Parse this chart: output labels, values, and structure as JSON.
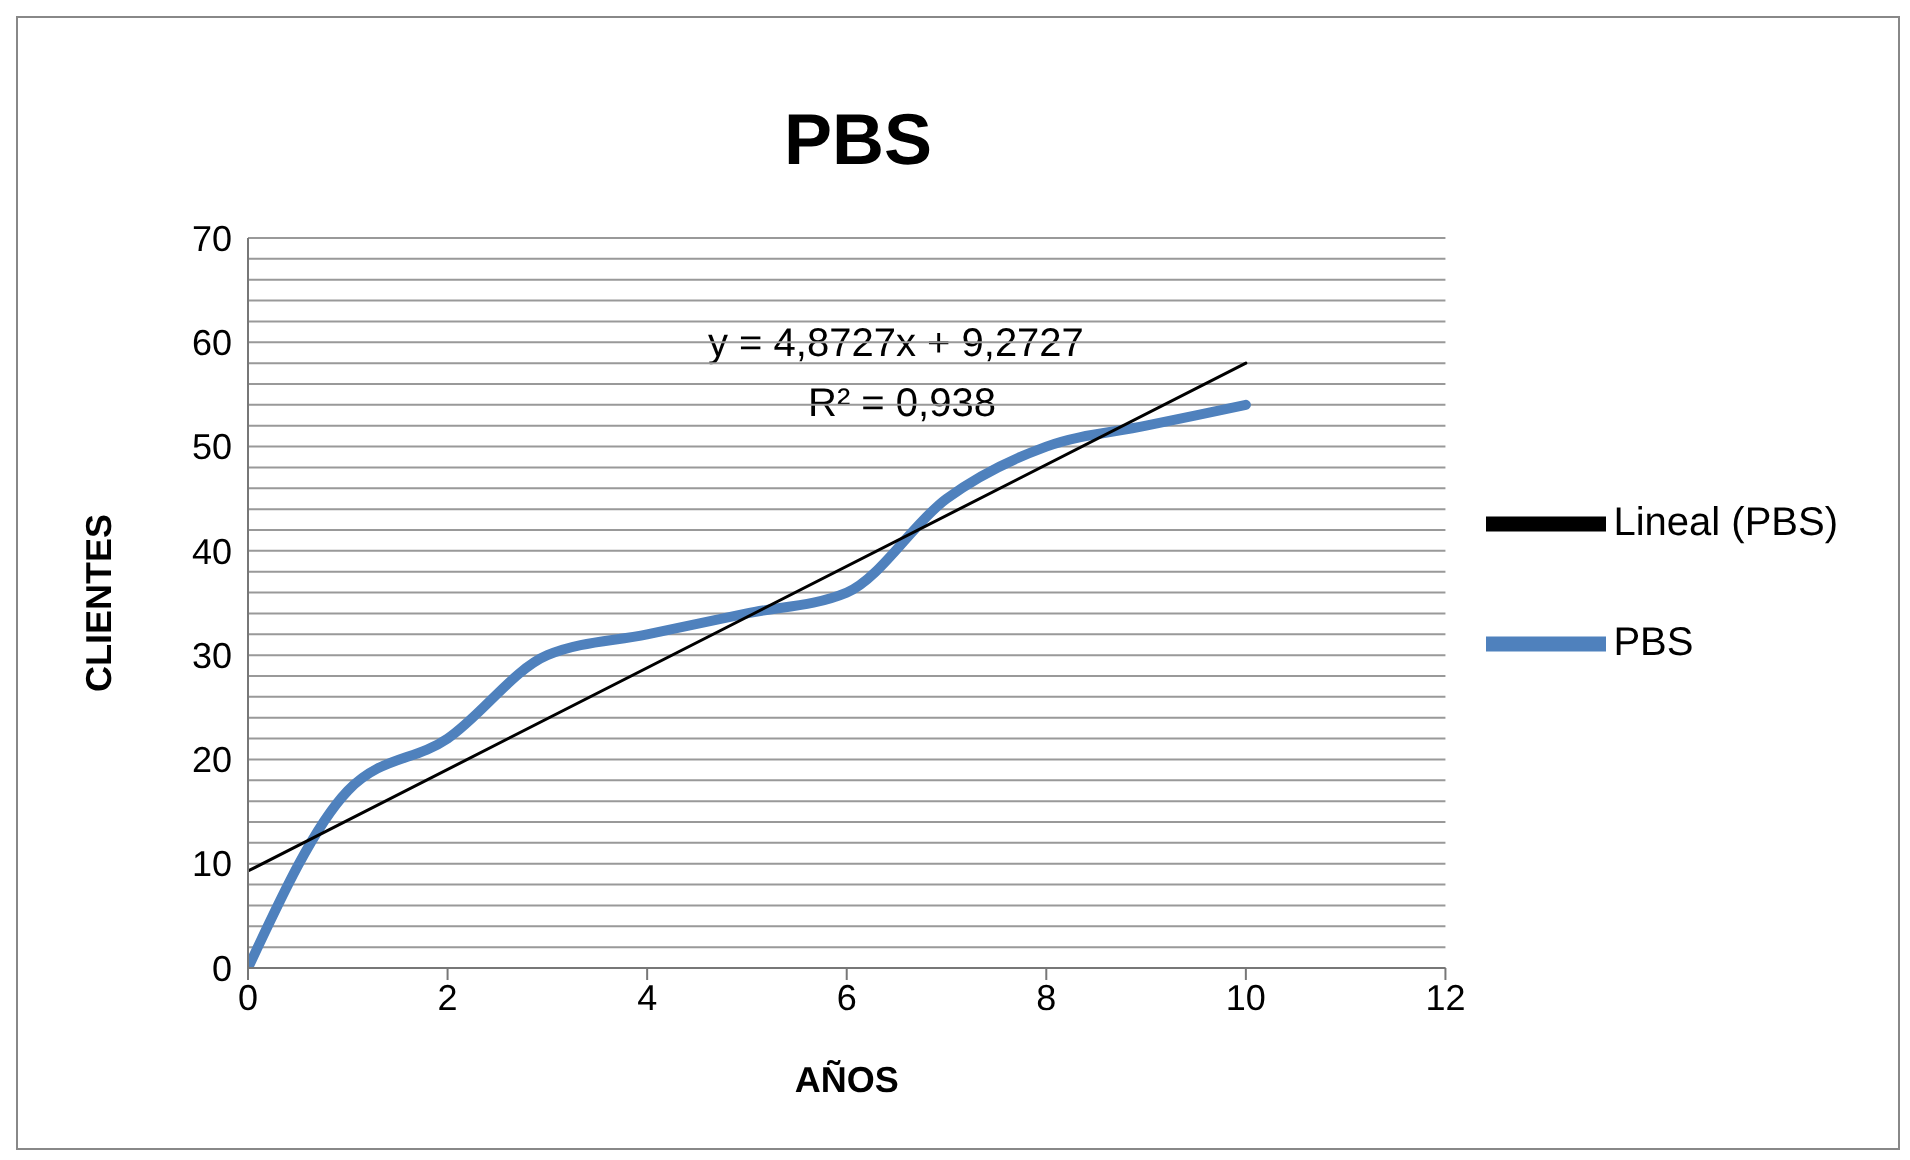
{
  "chart_data": {
    "type": "line",
    "title": "PBS",
    "xlabel": "AÑOS",
    "ylabel": "CLIENTES",
    "annotations": [
      "y = 4,8727x + 9,2727",
      "R² = 0,938"
    ],
    "series": [
      {
        "name": "PBS",
        "color": "#4f81bd",
        "x": [
          0,
          1,
          2,
          3,
          4,
          5,
          6,
          7,
          8,
          9,
          10
        ],
        "values": [
          0,
          17,
          22,
          30,
          32,
          34,
          36,
          45,
          50,
          52,
          54
        ]
      },
      {
        "name": "Lineal (PBS)",
        "type": "line",
        "color": "#000000",
        "x": [
          0,
          10
        ],
        "values": [
          9.3,
          58
        ]
      }
    ],
    "xlim": [
      0,
      12
    ],
    "xticks": [
      0,
      2,
      4,
      6,
      8,
      10,
      12
    ],
    "ylim": [
      0,
      70
    ],
    "yticks": [
      0,
      {
        "value": 2,
        "label": null
      },
      {
        "value": 4,
        "label": null
      },
      {
        "value": 6,
        "label": null
      },
      {
        "value": 8,
        "label": null
      },
      10,
      {
        "value": 12,
        "label": null
      },
      {
        "value": 14,
        "label": null
      },
      {
        "value": 16,
        "label": null
      },
      {
        "value": 18,
        "label": null
      },
      20,
      {
        "value": 22,
        "label": null
      },
      {
        "value": 24,
        "label": null
      },
      {
        "value": 26,
        "label": null
      },
      {
        "value": 28,
        "label": null
      },
      30,
      {
        "value": 32,
        "label": null
      },
      {
        "value": 34,
        "label": null
      },
      {
        "value": 36,
        "label": null
      },
      {
        "value": 38,
        "label": null
      },
      40,
      {
        "value": 42,
        "label": null
      },
      {
        "value": 44,
        "label": null
      },
      {
        "value": 46,
        "label": null
      },
      {
        "value": 48,
        "label": null
      },
      50,
      {
        "value": 52,
        "label": null
      },
      {
        "value": 54,
        "label": null
      },
      {
        "value": 56,
        "label": null
      },
      {
        "value": 58,
        "label": null
      },
      60,
      {
        "value": 62,
        "label": null
      },
      {
        "value": 64,
        "label": null
      },
      {
        "value": 66,
        "label": null
      },
      {
        "value": 68,
        "label": null
      },
      70
    ],
    "grid": "y",
    "legend": "right",
    "marker": "none",
    "line_style": "solid"
  }
}
